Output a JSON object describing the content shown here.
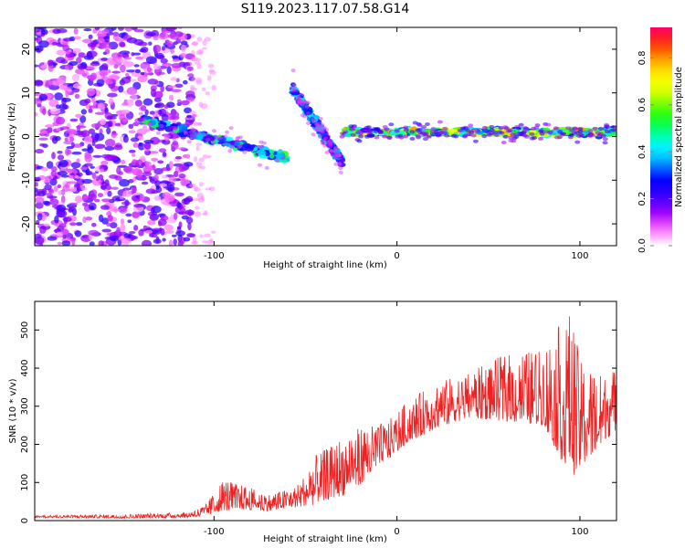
{
  "title": "S119.2023.117.07.58.G14",
  "chart_data": [
    {
      "type": "heatmap",
      "xlabel": "Height of straight line (km)",
      "ylabel": "Frequency (Hz)",
      "xlim": [
        -198,
        120
      ],
      "ylim": [
        -25,
        25
      ],
      "xticks": [
        -100,
        0,
        100
      ],
      "yticks": [
        -20,
        -10,
        0,
        10,
        20
      ],
      "colorbar": {
        "label": "Normalized spectral amplitude",
        "range": [
          0.0,
          0.93
        ],
        "ticks": [
          0.0,
          0.2,
          0.4,
          0.6,
          0.8
        ],
        "colors": [
          "#ffffff",
          "#ff66ff",
          "#9900ff",
          "#3300ff",
          "#0000ff",
          "#00aaff",
          "#00ffff",
          "#00ff66",
          "#33ff00",
          "#ccff00",
          "#ffff00",
          "#ffaa00",
          "#ff3300",
          "#ff0066"
        ]
      },
      "features": [
        {
          "name": "scattered noise",
          "x_range": [
            -198,
            -112
          ],
          "freq_range": [
            -25,
            25
          ],
          "amplitude": 0.15
        },
        {
          "name": "dispersive tail",
          "x_range": [
            -140,
            -60
          ],
          "freq_start": 4,
          "freq_end": -5,
          "amplitude": 0.35
        },
        {
          "name": "descending branch",
          "x_range": [
            -57,
            -30
          ],
          "freq_start": 11,
          "freq_end": -6,
          "amplitude": 0.3
        },
        {
          "name": "steady line",
          "x_range": [
            -30,
            120
          ],
          "frequency": 1,
          "amplitude_range": [
            0.3,
            0.9
          ]
        }
      ]
    },
    {
      "type": "line",
      "xlabel": "Height of straight line (km)",
      "ylabel": "SNR (10 * v/v)",
      "xlim": [
        -198,
        120
      ],
      "ylim": [
        0,
        575
      ],
      "xticks": [
        -100,
        0,
        100
      ],
      "yticks": [
        0,
        100,
        200,
        300,
        400,
        500
      ],
      "color": "#ee2222",
      "envelope": {
        "x": [
          -198,
          -150,
          -115,
          -105,
          -95,
          -85,
          -70,
          -55,
          -45,
          -35,
          -25,
          -15,
          -5,
          5,
          20,
          40,
          60,
          80,
          95,
          100,
          110,
          120
        ],
        "low": [
          8,
          6,
          8,
          12,
          25,
          30,
          25,
          35,
          40,
          60,
          70,
          120,
          160,
          200,
          240,
          270,
          260,
          250,
          110,
          140,
          190,
          240
        ],
        "high": [
          14,
          16,
          22,
          40,
          110,
          95,
          70,
          90,
          170,
          200,
          240,
          250,
          260,
          310,
          360,
          390,
          440,
          450,
          560,
          420,
          390,
          400
        ]
      }
    }
  ]
}
